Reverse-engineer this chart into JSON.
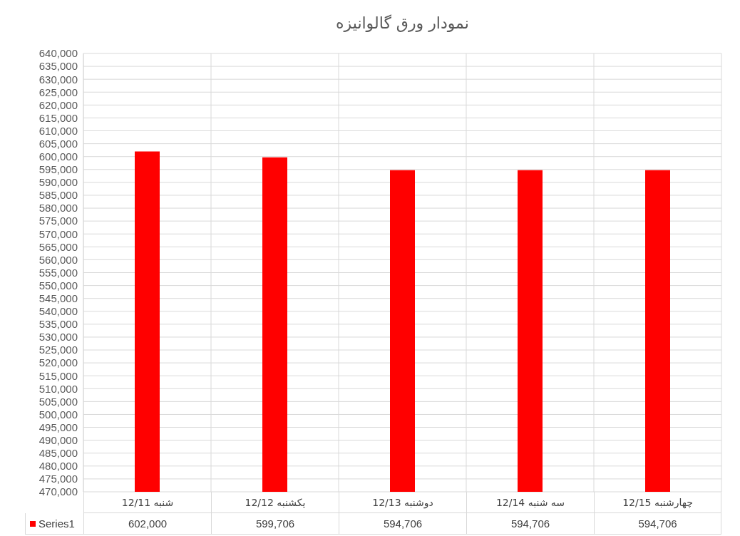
{
  "chart_data": {
    "type": "bar",
    "title": "نمودار ورق گالوانیزه",
    "categories": [
      "شنبه 12/11",
      "یکشنبه 12/12",
      "دوشنبه 12/13",
      "سه شنبه 12/14",
      "چهارشنبه 12/15"
    ],
    "series": [
      {
        "name": "Series1",
        "color": "#ff0000",
        "values": [
          602000,
          599706,
          594706,
          594706,
          594706
        ],
        "value_labels": [
          "602,000",
          "599,706",
          "594,706",
          "594,706",
          "594,706"
        ]
      }
    ],
    "ylim": [
      470000,
      640000
    ],
    "yticks": [
      {
        "value": 470000,
        "label": "470,000"
      },
      {
        "value": 475000,
        "label": "475,000"
      },
      {
        "value": 480000,
        "label": "480,000"
      },
      {
        "value": 485000,
        "label": "485,000"
      },
      {
        "value": 490000,
        "label": "490,000"
      },
      {
        "value": 495000,
        "label": "495,000"
      },
      {
        "value": 500000,
        "label": "500,000"
      },
      {
        "value": 505000,
        "label": "505,000"
      },
      {
        "value": 510000,
        "label": "510,000"
      },
      {
        "value": 515000,
        "label": "515,000"
      },
      {
        "value": 520000,
        "label": "520,000"
      },
      {
        "value": 525000,
        "label": "525,000"
      },
      {
        "value": 530000,
        "label": "530,000"
      },
      {
        "value": 535000,
        "label": "535,000"
      },
      {
        "value": 540000,
        "label": "540,000"
      },
      {
        "value": 545000,
        "label": "545,000"
      },
      {
        "value": 550000,
        "label": "550,000"
      },
      {
        "value": 555000,
        "label": "555,000"
      },
      {
        "value": 560000,
        "label": "560,000"
      },
      {
        "value": 565000,
        "label": "565,000"
      },
      {
        "value": 570000,
        "label": "570,000"
      },
      {
        "value": 575000,
        "label": "575,000"
      },
      {
        "value": 580000,
        "label": "580,000"
      },
      {
        "value": 585000,
        "label": "585,000"
      },
      {
        "value": 590000,
        "label": "590,000"
      },
      {
        "value": 595000,
        "label": "595,000"
      },
      {
        "value": 600000,
        "label": "600,000"
      },
      {
        "value": 605000,
        "label": "605,000"
      },
      {
        "value": 610000,
        "label": "610,000"
      },
      {
        "value": 615000,
        "label": "615,000"
      },
      {
        "value": 620000,
        "label": "620,000"
      },
      {
        "value": 625000,
        "label": "625,000"
      },
      {
        "value": 630000,
        "label": "630,000"
      },
      {
        "value": 635000,
        "label": "635,000"
      },
      {
        "value": 640000,
        "label": "640,000"
      }
    ],
    "grid": true
  }
}
